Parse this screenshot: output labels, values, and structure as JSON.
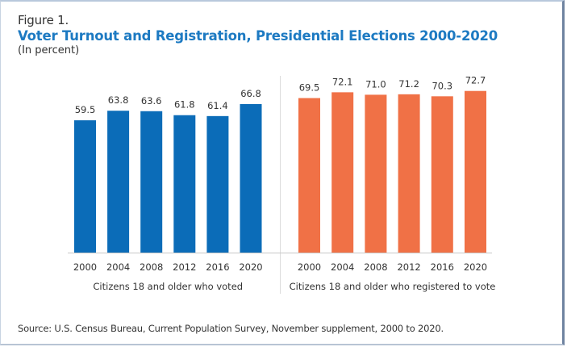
{
  "figure_label": "Figure 1.",
  "title": "Voter Turnout and Registration, Presidential Elections 2000-2020",
  "subtitle": "(In percent)",
  "source": "Source: U.S. Census Bureau, Current Population Survey, November supplement, 2000 to 2020.",
  "chart_data": [
    {
      "type": "bar",
      "title": "Voter Turnout and Registration, Presidential Elections 2000-2020",
      "subtitle": "(In percent)",
      "panel_label": "Citizens 18 and older who voted",
      "categories": [
        "2000",
        "2004",
        "2008",
        "2012",
        "2016",
        "2020"
      ],
      "values": [
        59.5,
        63.8,
        63.6,
        61.8,
        61.4,
        66.8
      ],
      "value_labels": [
        "59.5",
        "63.8",
        "63.6",
        "61.8",
        "61.4",
        "66.8"
      ],
      "color": "#0b6cb8",
      "xlabel": "Citizens 18 and older who voted",
      "ylabel": "",
      "ylim": [
        0,
        80
      ],
      "grid": false
    },
    {
      "type": "bar",
      "title": "Voter Turnout and Registration, Presidential Elections 2000-2020",
      "subtitle": "(In percent)",
      "panel_label": "Citizens 18 and older who registered to vote",
      "categories": [
        "2000",
        "2004",
        "2008",
        "2012",
        "2016",
        "2020"
      ],
      "values": [
        69.5,
        72.1,
        71.0,
        71.2,
        70.3,
        72.7
      ],
      "value_labels": [
        "69.5",
        "72.1",
        "71.0",
        "71.2",
        "70.3",
        "72.7"
      ],
      "color": "#f07146",
      "xlabel": "Citizens 18 and older who registered to vote",
      "ylabel": "",
      "ylim": [
        0,
        80
      ],
      "grid": false
    }
  ],
  "colors": {
    "title": "#1d7ac2",
    "voted": "#0b6cb8",
    "registered": "#f07146"
  }
}
